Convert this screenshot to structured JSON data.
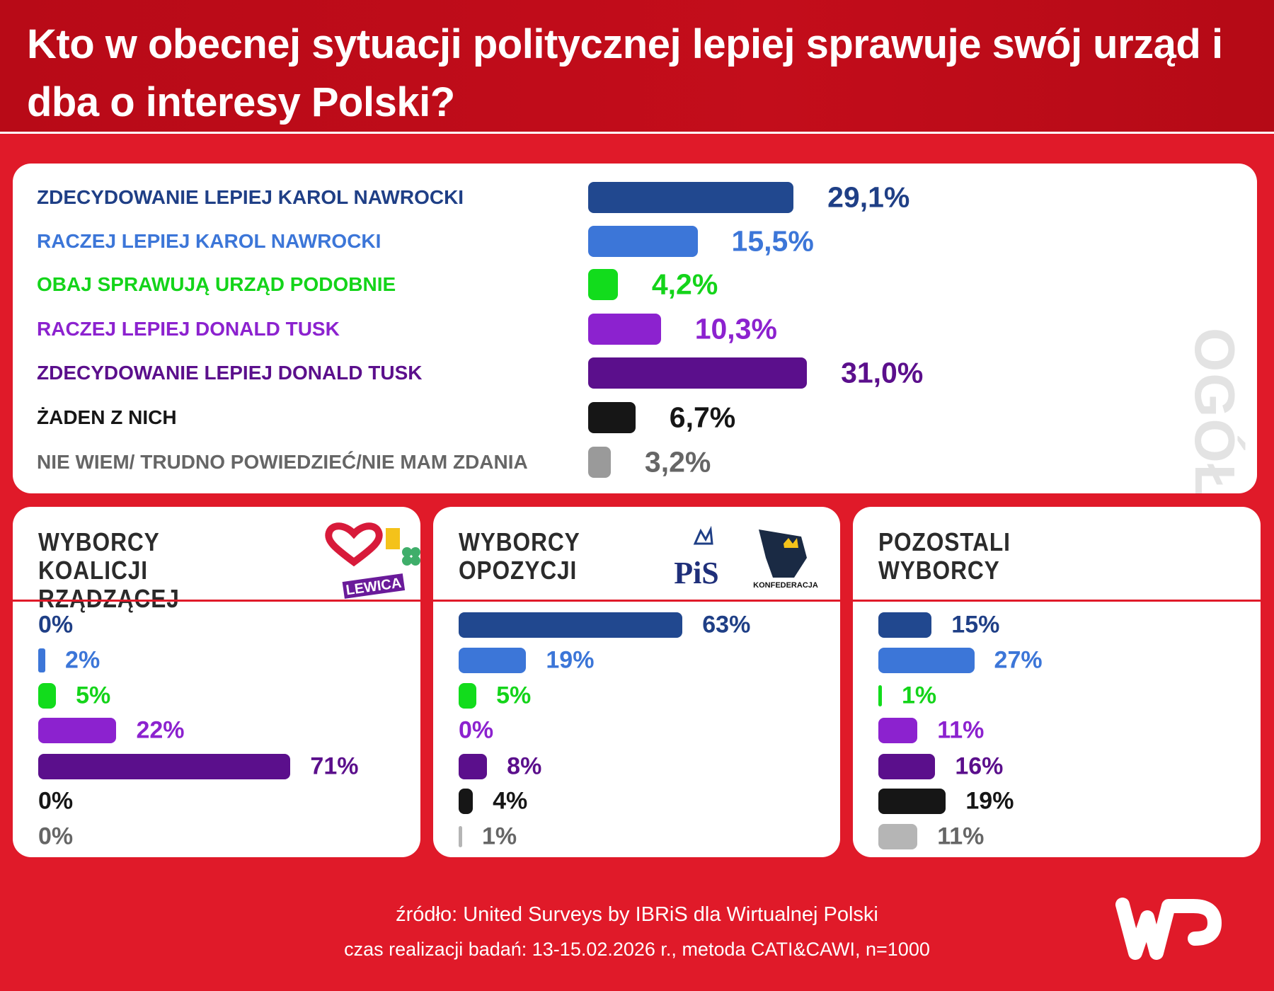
{
  "title": "Kto w obecnej sytuacji politycznej lepiej sprawuje swój urząd i dba o interesy Polski?",
  "chart_data": [
    {
      "type": "bar",
      "orientation": "horizontal",
      "panel_label": "OGÓŁEM",
      "categories": [
        "ZDECYDOWANIE LEPIEJ KAROL NAWROCKI",
        "RACZEJ LEPIEJ KAROL NAWROCKI",
        "OBAJ SPRAWUJĄ URZĄD PODOBNIE",
        "RACZEJ LEPIEJ DONALD TUSK",
        "ZDECYDOWANIE LEPIEJ DONALD TUSK",
        "ŻADEN Z NICH",
        "NIE WIEM/ TRUDNO POWIEDZIEĆ/NIE MAM ZDANIA"
      ],
      "values": [
        29.1,
        15.5,
        4.2,
        10.3,
        31.0,
        6.7,
        3.2
      ],
      "labels": [
        "29,1%",
        "15,5%",
        "4,2%",
        "10,3%",
        "31,0%",
        "6,7%",
        "3,2%"
      ],
      "colors": [
        "#21488f",
        "#3c76d8",
        "#12dc1c",
        "#8c22cf",
        "#5b0f8c",
        "#161616",
        "#9a9a9a"
      ],
      "label_colors": [
        "#1f3f86",
        "#3c76d8",
        "#14d41a",
        "#8c22cf",
        "#5b0f8c",
        "#161616",
        "#666666"
      ],
      "unit": "%"
    },
    {
      "type": "bar",
      "orientation": "horizontal",
      "title": "WYBORCY KOALICJI RZĄDZĄCEJ",
      "logos": [
        "LEWICA"
      ],
      "values": [
        0,
        2,
        5,
        22,
        71,
        0,
        0
      ],
      "labels": [
        "0%",
        "2%",
        "5%",
        "22%",
        "71%",
        "0%",
        "0%"
      ]
    },
    {
      "type": "bar",
      "orientation": "horizontal",
      "title": "WYBORCY OPOZYCJI",
      "logos": [
        "PiS",
        "KONFEDERACJA"
      ],
      "values": [
        63,
        19,
        5,
        0,
        8,
        4,
        1
      ],
      "labels": [
        "63%",
        "19%",
        "5%",
        "0%",
        "8%",
        "4%",
        "1%"
      ]
    },
    {
      "type": "bar",
      "orientation": "horizontal",
      "title": "POZOSTALI WYBORCY",
      "values": [
        15,
        27,
        1,
        11,
        16,
        19,
        11
      ],
      "labels": [
        "15%",
        "27%",
        "1%",
        "11%",
        "16%",
        "19%",
        "11%"
      ]
    }
  ],
  "sub_colors": [
    "#21488f",
    "#3c76d8",
    "#12dc1c",
    "#8c22cf",
    "#5b0f8c",
    "#161616",
    "#b5b5b5"
  ],
  "sub_label_colors": [
    "#1f3f86",
    "#3c76d8",
    "#14d41a",
    "#8c22cf",
    "#5b0f8c",
    "#161616",
    "#666666"
  ],
  "footer": {
    "source": "źródło: United Surveys by IBRiS dla Wirtualnej Polski",
    "method": "czas realizacji badań: 13-15.02.2026 r., metoda CATI&CAWI, n=1000"
  },
  "brand": {
    "logo": "WP",
    "background": "#e01a29"
  }
}
